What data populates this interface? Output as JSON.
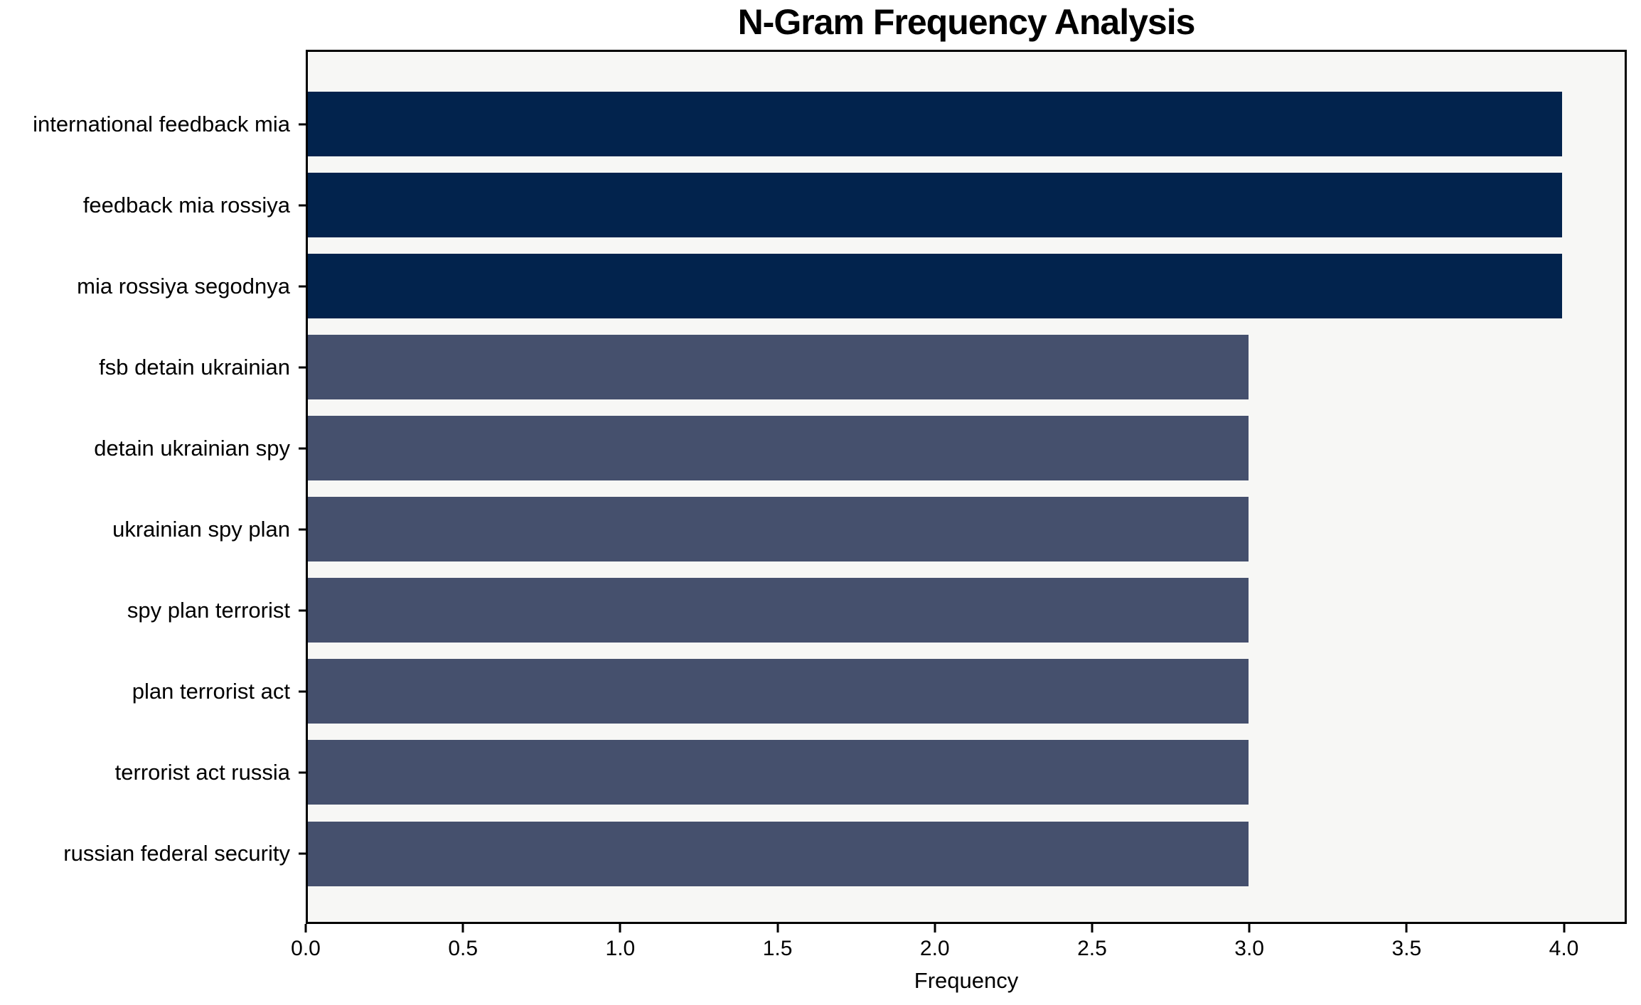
{
  "figure": {
    "title": "N-Gram Frequency Analysis",
    "x_axis_label": "Frequency"
  },
  "chart_data": {
    "type": "bar",
    "orientation": "horizontal",
    "title": "N-Gram Frequency Analysis",
    "xlabel": "Frequency",
    "ylabel": "",
    "categories": [
      "international feedback mia",
      "feedback mia rossiya",
      "mia rossiya segodnya",
      "fsb detain ukrainian",
      "detain ukrainian spy",
      "ukrainian spy plan",
      "spy plan terrorist",
      "plan terrorist act",
      "terrorist act russia",
      "russian federal security"
    ],
    "values": [
      4,
      4,
      4,
      3,
      3,
      3,
      3,
      3,
      3,
      3
    ],
    "bar_colors": [
      "#02234d",
      "#02234d",
      "#02234d",
      "#45506d",
      "#45506d",
      "#45506d",
      "#45506d",
      "#45506d",
      "#45506d",
      "#45506d"
    ],
    "xlim": [
      0,
      4.2
    ],
    "xticks": [
      0.0,
      0.5,
      1.0,
      1.5,
      2.0,
      2.5,
      3.0,
      3.5,
      4.0
    ],
    "xtick_format_decimals": 1,
    "grid": false,
    "legend": null,
    "colors": {
      "highlight_bar": "#02234d",
      "normal_bar": "#45506d",
      "plot_background": "#f7f7f5",
      "figure_background": "#ffffff",
      "spine": "#000000",
      "text": "#000000"
    }
  }
}
